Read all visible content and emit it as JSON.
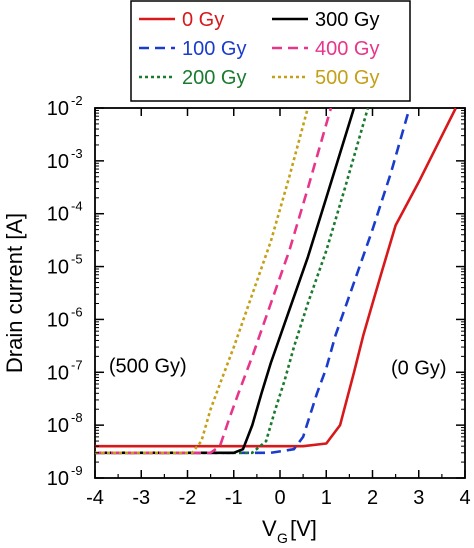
{
  "chart_data": {
    "type": "line",
    "xlabel": "V",
    "xlabel_sub": "G",
    "xlabel_unit": "[V]",
    "ylabel": "Drain current [A]",
    "yscale": "log",
    "xlim": [
      -4,
      4
    ],
    "ylim": [
      1e-09,
      0.01
    ],
    "xticks": [
      -4,
      -3,
      -2,
      -1,
      0,
      1,
      2,
      3,
      4
    ],
    "yticks": [
      {
        "value": 1e-09,
        "base": "10",
        "exp": "-9"
      },
      {
        "value": 1e-08,
        "base": "10",
        "exp": "-8"
      },
      {
        "value": 1e-07,
        "base": "10",
        "exp": "-7"
      },
      {
        "value": 1e-06,
        "base": "10",
        "exp": "-6"
      },
      {
        "value": 1e-05,
        "base": "10",
        "exp": "-5"
      },
      {
        "value": 0.0001,
        "base": "10",
        "exp": "-4"
      },
      {
        "value": 0.001,
        "base": "10",
        "exp": "-3"
      },
      {
        "value": 0.01,
        "base": "10",
        "exp": "-2"
      }
    ],
    "legend_position": "top",
    "annotations": [
      {
        "text": "(500 Gy)",
        "x": -3.7,
        "y": 1e-07
      },
      {
        "text": "(0 Gy)",
        "x": 2.4,
        "y": 9e-08
      }
    ],
    "series": [
      {
        "name": "0 Gy",
        "color": "#d7191c",
        "dash": "solid",
        "x": [
          -4,
          0.5,
          1.0,
          1.3,
          1.6,
          1.8,
          2.0,
          2.2,
          2.5,
          3.0,
          3.4,
          3.8
        ],
        "y": [
          4e-09,
          4e-09,
          4.5e-09,
          1e-08,
          1e-07,
          5e-07,
          2e-06,
          8e-06,
          6e-05,
          0.0004,
          0.002,
          0.01
        ]
      },
      {
        "name": "100 Gy",
        "color": "#1a3ccc",
        "dash": "dashed",
        "x": [
          -4,
          -0.2,
          0.3,
          0.5,
          0.8,
          1.0,
          1.2,
          1.6,
          2.0,
          2.4,
          2.8
        ],
        "y": [
          3e-09,
          3e-09,
          3.5e-09,
          6e-09,
          4e-08,
          1.2e-07,
          5e-07,
          5e-06,
          5e-05,
          0.0006,
          0.01
        ]
      },
      {
        "name": "200 Gy",
        "color": "#1a7a2e",
        "dash": "dotted",
        "x": [
          -4,
          -0.6,
          -0.3,
          -0.1,
          0.1,
          0.3,
          0.6,
          1.0,
          1.4,
          1.9
        ],
        "y": [
          3e-09,
          3e-09,
          5e-09,
          2e-08,
          7e-08,
          3e-07,
          2e-06,
          2e-05,
          0.0003,
          0.01
        ]
      },
      {
        "name": "300 Gy",
        "color": "#000000",
        "dash": "solid",
        "x": [
          -4,
          -1.0,
          -0.8,
          -0.6,
          -0.4,
          -0.2,
          0.2,
          0.6,
          1.0,
          1.6
        ],
        "y": [
          3e-09,
          3e-09,
          3.5e-09,
          1e-08,
          4e-08,
          1.5e-07,
          1.5e-06,
          1.5e-05,
          0.0002,
          0.01
        ]
      },
      {
        "name": "400 Gy",
        "color": "#e8358c",
        "dash": "dashed",
        "x": [
          -4,
          -1.5,
          -1.3,
          -1.1,
          -0.9,
          -0.6,
          -0.2,
          0.2,
          0.6,
          1.1
        ],
        "y": [
          3e-09,
          3e-09,
          4e-09,
          1.3e-08,
          4e-08,
          2e-07,
          2e-06,
          2e-05,
          0.0003,
          0.01
        ]
      },
      {
        "name": "500 Gy",
        "color": "#c4a018",
        "dash": "dotted",
        "x": [
          -4,
          -1.9,
          -1.7,
          -1.5,
          -1.3,
          -1.0,
          -0.6,
          -0.2,
          0.2,
          0.6
        ],
        "y": [
          3e-09,
          3e-09,
          5e-09,
          2e-08,
          6e-08,
          3e-07,
          3e-06,
          3e-05,
          0.0005,
          0.01
        ]
      }
    ],
    "legend_layout": [
      [
        "0 Gy",
        "300 Gy"
      ],
      [
        "100 Gy",
        "400 Gy"
      ],
      [
        "200 Gy",
        "500 Gy"
      ]
    ]
  }
}
